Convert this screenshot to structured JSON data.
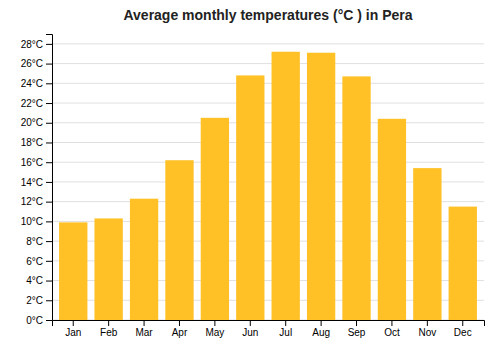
{
  "chart_data": {
    "type": "bar",
    "title": "Average monthly temperatures (°C ) in Pera",
    "categories": [
      "Jan",
      "Feb",
      "Mar",
      "Apr",
      "May",
      "Jun",
      "Jul",
      "Aug",
      "Sep",
      "Oct",
      "Nov",
      "Dec"
    ],
    "values": [
      9.9,
      10.3,
      12.3,
      16.2,
      20.5,
      24.8,
      27.2,
      27.1,
      24.7,
      20.4,
      15.4,
      11.5
    ],
    "color": "#FFC125",
    "ylim": [
      0,
      29
    ],
    "yticks": [
      {
        "value": 0,
        "label": "0°C"
      },
      {
        "value": 2,
        "label": "2°C"
      },
      {
        "value": 4,
        "label": "4°C"
      },
      {
        "value": 6,
        "label": "6°C"
      },
      {
        "value": 8,
        "label": "8°C"
      },
      {
        "value": 10,
        "label": "10°C"
      },
      {
        "value": 12,
        "label": "12°C"
      },
      {
        "value": 14,
        "label": "14°C"
      },
      {
        "value": 16,
        "label": "16°C"
      },
      {
        "value": 18,
        "label": "18°C"
      },
      {
        "value": 20,
        "label": "20°C"
      },
      {
        "value": 22,
        "label": "22°C"
      },
      {
        "value": 24,
        "label": "24°C"
      },
      {
        "value": 26,
        "label": "26°C"
      },
      {
        "value": 28,
        "label": "28°C"
      }
    ],
    "grid": true
  }
}
